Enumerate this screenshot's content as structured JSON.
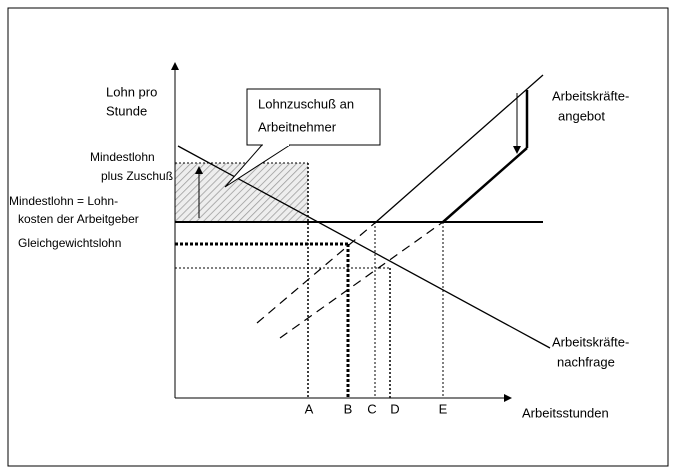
{
  "y_axis_label": [
    "Lohn pro",
    "Stunde"
  ],
  "x_axis_label": "Arbeitsstunden",
  "callout": [
    "Lohnzuschuß an",
    "Arbeitnehmer"
  ],
  "wage_labels": {
    "min_plus_subsidy": [
      "Mindestlohn",
      "plus Zuschuß"
    ],
    "min_wage": [
      "Mindestlohn = Lohn-",
      "kosten der Arbeitgeber"
    ],
    "equilibrium": "Gleichgewichtslohn"
  },
  "supply_label": [
    "Arbeitskräfte-",
    "angebot"
  ],
  "demand_label": [
    "Arbeitskräfte-",
    "nachfrage"
  ],
  "points": [
    "A",
    "B",
    "C",
    "D",
    "E"
  ]
}
